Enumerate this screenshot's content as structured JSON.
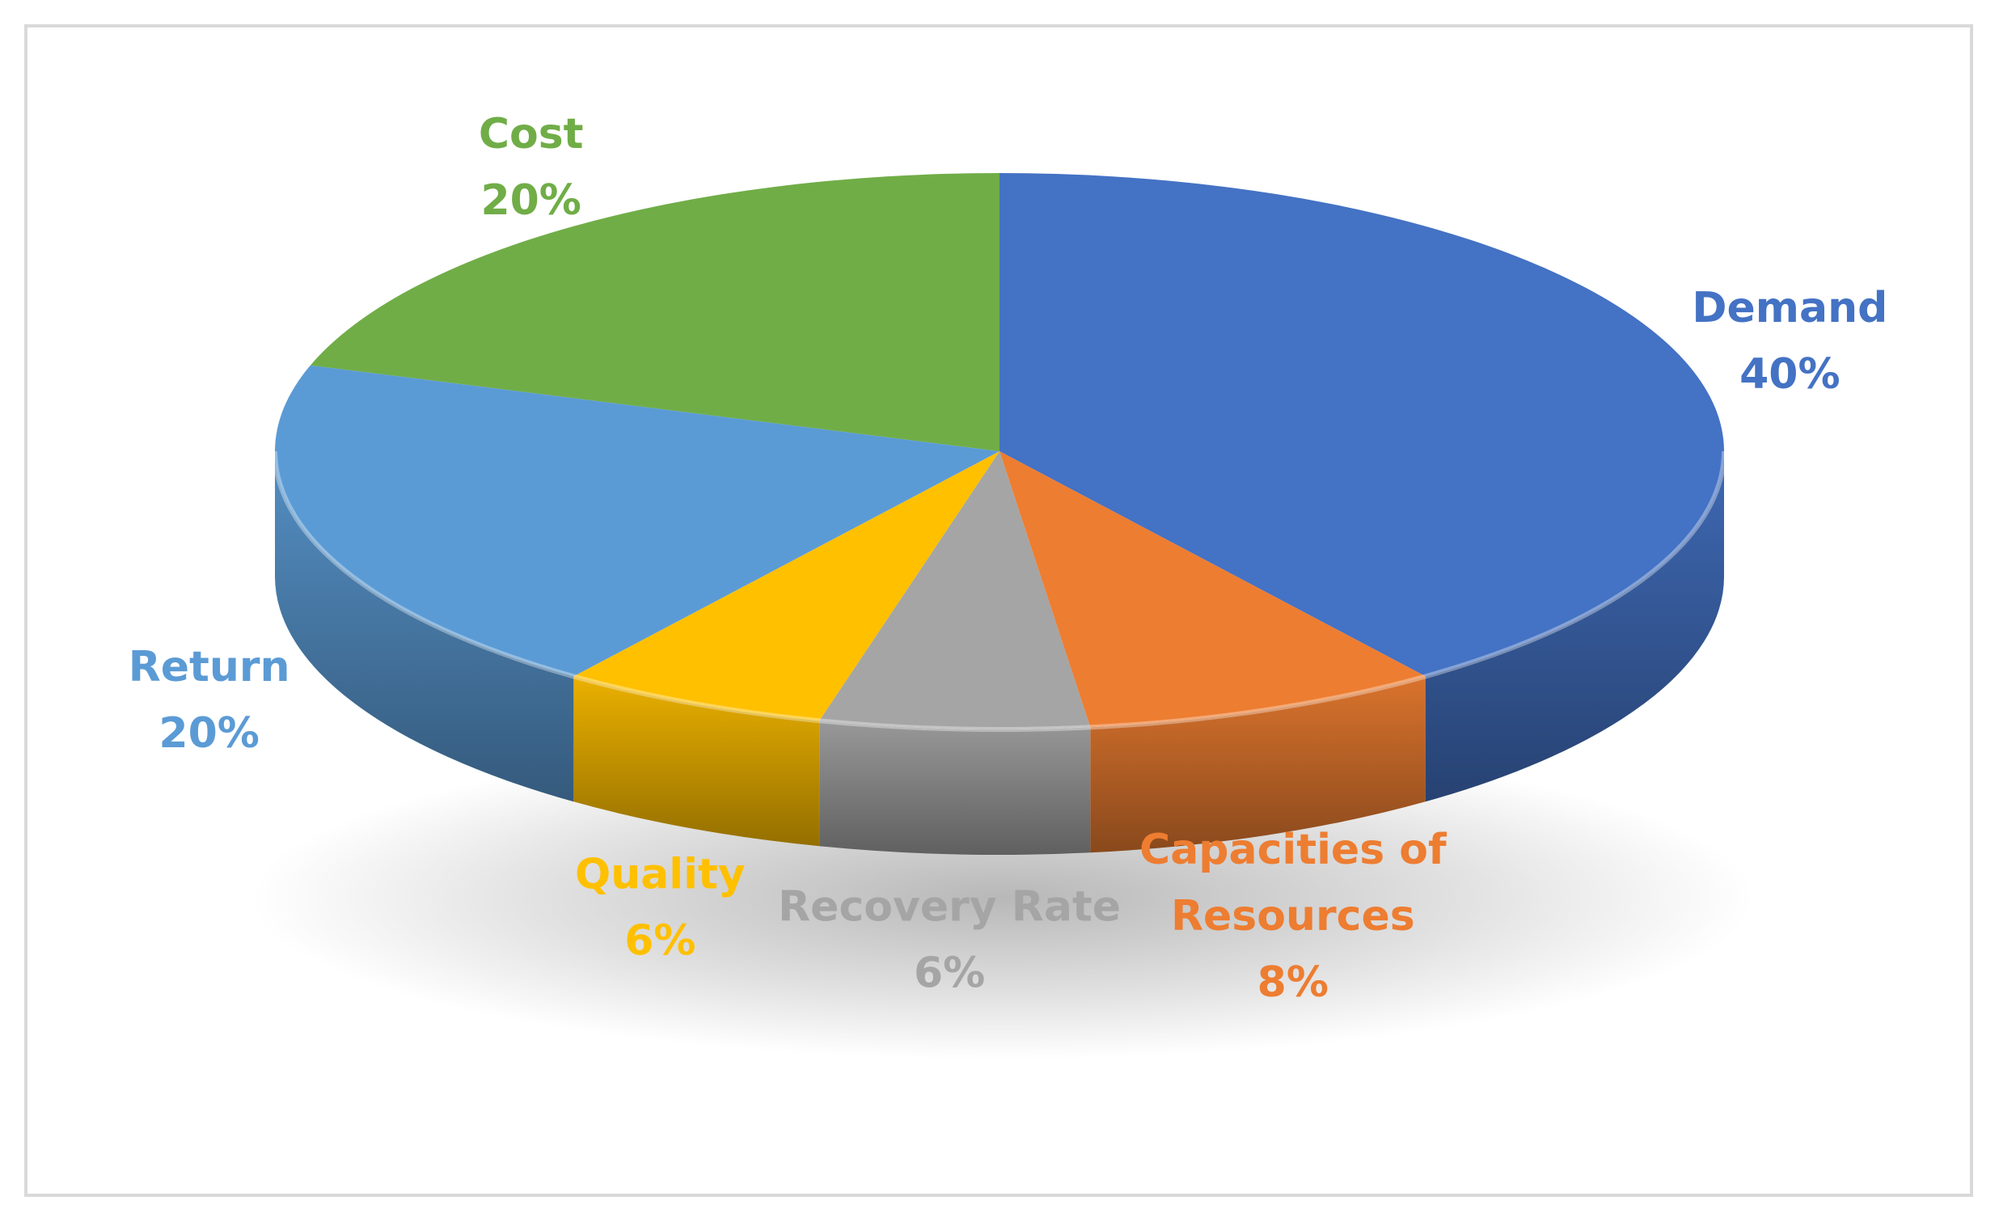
{
  "chart_data": {
    "type": "pie",
    "title": "",
    "three_d": true,
    "legend": "none",
    "slices": [
      {
        "category": "Demand",
        "value": 40,
        "label": "40%",
        "color": "#4472c4"
      },
      {
        "category": "Capacities of Resources",
        "value": 8,
        "label": "8%",
        "color": "#ed7d31"
      },
      {
        "category": "Recovery Rate",
        "value": 6,
        "label": "6%",
        "color": "#a5a5a5"
      },
      {
        "category": "Quality",
        "value": 6,
        "label": "6%",
        "color": "#ffc000"
      },
      {
        "category": "Return",
        "value": 20,
        "label": "20%",
        "color": "#5b9bd5"
      },
      {
        "category": "Cost",
        "value": 20,
        "label": "20%",
        "color": "#70ad47"
      }
    ]
  }
}
